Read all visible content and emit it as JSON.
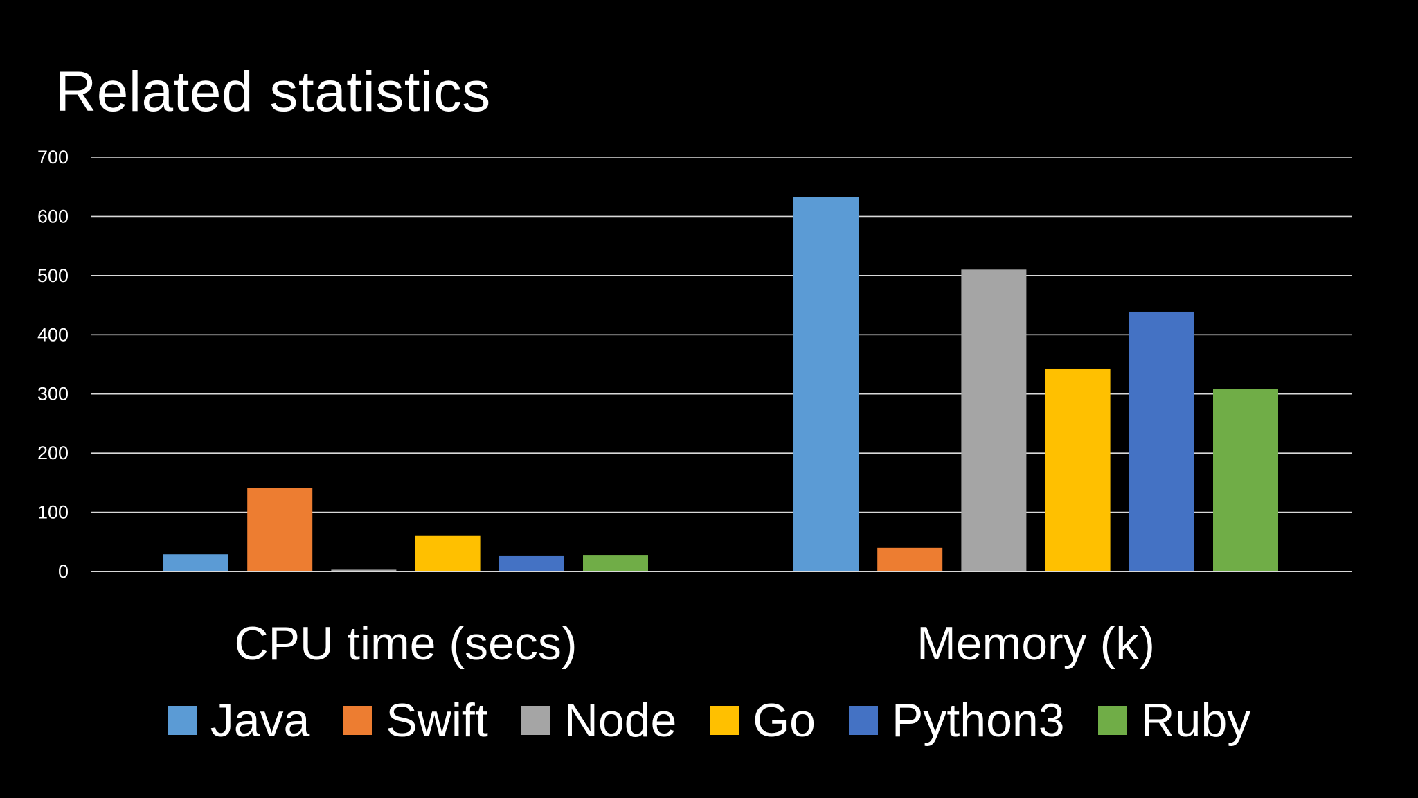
{
  "slide": {
    "title": "Related statistics"
  },
  "chart_data": {
    "type": "bar",
    "title": "Related statistics",
    "xlabel": "",
    "ylabel": "",
    "ylim": [
      0,
      700
    ],
    "yticks": [
      0,
      100,
      200,
      300,
      400,
      500,
      600,
      700
    ],
    "grid": true,
    "legend_position": "bottom",
    "categories": [
      "CPU time (secs)",
      "Memory (k)"
    ],
    "series": [
      {
        "name": "Java",
        "color": "#5B9BD5",
        "values": [
          29,
          633
        ]
      },
      {
        "name": "Swift",
        "color": "#ED7D31",
        "values": [
          141,
          40
        ]
      },
      {
        "name": "Node",
        "color": "#A5A5A5",
        "values": [
          3,
          510
        ]
      },
      {
        "name": "Go",
        "color": "#FFC000",
        "values": [
          60,
          343
        ]
      },
      {
        "name": "Python3",
        "color": "#4472C4",
        "values": [
          27,
          439
        ]
      },
      {
        "name": "Ruby",
        "color": "#70AD47",
        "values": [
          28,
          308
        ]
      }
    ]
  }
}
